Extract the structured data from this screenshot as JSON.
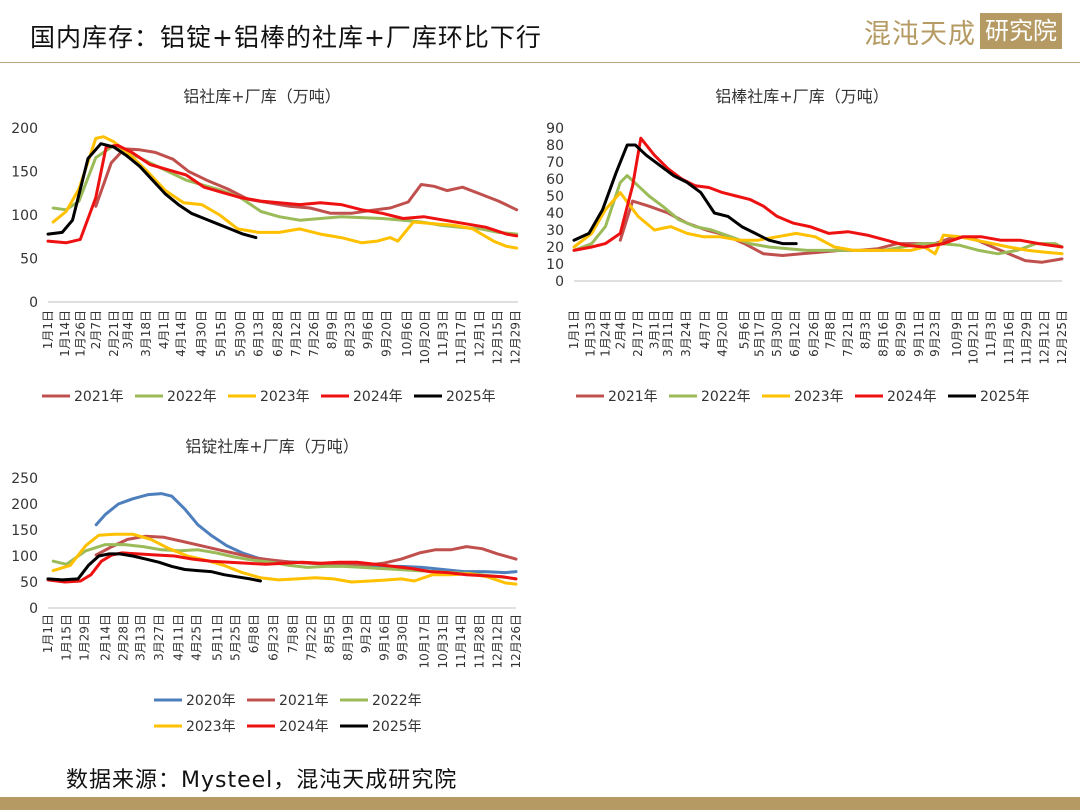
{
  "header": {
    "title": "国内库存：铝锭+铝棒的社库+厂库环比下行",
    "brand_main": "混沌天成",
    "brand_box": "研究院"
  },
  "footer": {
    "source": "数据来源：Mysteel，混沌天成研究院"
  },
  "colors": {
    "2020年": "#4e7fbd",
    "2021年": "#c0504d",
    "2022年": "#9bbb59",
    "2023年": "#ffc000",
    "2024年": "#ee1111",
    "2025年": "#000000"
  },
  "chart_data": [
    {
      "id": "chart1",
      "type": "line",
      "title": "铝社库+厂库（万吨）",
      "ylim": [
        0,
        200
      ],
      "yticks": [
        0,
        50,
        100,
        150,
        200
      ],
      "xlim": [
        1,
        365
      ],
      "xticks": [
        "1月1日",
        "1月14日",
        "1月26日",
        "2月7日",
        "2月21日",
        "3月4日",
        "3月18日",
        "4月1日",
        "4月14日",
        "4月30日",
        "5月15日",
        "5月30日",
        "6月13日",
        "6月28日",
        "7月12日",
        "7月26日",
        "8月9日",
        "8月23日",
        "9月6日",
        "9月20日",
        "10月6日",
        "10月20日",
        "11月3日",
        "11月17日",
        "12月1日",
        "12月15日",
        "12月29日"
      ],
      "xtick_days": [
        1,
        14,
        26,
        38,
        52,
        63,
        77,
        91,
        104,
        120,
        135,
        150,
        164,
        179,
        193,
        207,
        221,
        235,
        249,
        263,
        279,
        293,
        307,
        321,
        335,
        349,
        363
      ],
      "legend": [
        "2021年",
        "2022年",
        "2023年",
        "2024年",
        "2025年"
      ],
      "legend_placement": "bottom",
      "series": [
        {
          "name": "2021年",
          "x": [
            38,
            50,
            60,
            72,
            84,
            98,
            110,
            124,
            140,
            156,
            172,
            188,
            204,
            220,
            236,
            250,
            266,
            280,
            290,
            300,
            310,
            322,
            336,
            350,
            364
          ],
          "y": [
            110,
            160,
            176,
            175,
            172,
            164,
            150,
            140,
            130,
            118,
            114,
            110,
            108,
            102,
            102,
            105,
            108,
            115,
            135,
            133,
            128,
            132,
            124,
            116,
            106
          ]
        },
        {
          "name": "2022年",
          "x": [
            5,
            15,
            25,
            38,
            52,
            66,
            80,
            94,
            108,
            122,
            136,
            150,
            166,
            180,
            196,
            212,
            228,
            244,
            260,
            276,
            290,
            306,
            320,
            336,
            350,
            364
          ],
          "y": [
            108,
            106,
            116,
            166,
            180,
            170,
            160,
            150,
            140,
            134,
            128,
            120,
            104,
            98,
            94,
            96,
            98,
            97,
            96,
            94,
            92,
            88,
            86,
            84,
            80,
            78
          ]
        },
        {
          "name": "2023年",
          "x": [
            5,
            15,
            25,
            38,
            44,
            52,
            64,
            78,
            92,
            106,
            120,
            134,
            148,
            164,
            180,
            196,
            212,
            228,
            244,
            256,
            266,
            272,
            284,
            300,
            316,
            330,
            346,
            356,
            364
          ],
          "y": [
            92,
            104,
            130,
            188,
            190,
            184,
            170,
            150,
            128,
            114,
            112,
            100,
            84,
            80,
            80,
            84,
            78,
            74,
            68,
            70,
            74,
            70,
            92,
            90,
            88,
            84,
            70,
            64,
            62
          ]
        },
        {
          "name": "2024年",
          "x": [
            1,
            15,
            26,
            38,
            46,
            55,
            66,
            80,
            94,
            108,
            122,
            136,
            150,
            166,
            180,
            196,
            212,
            228,
            244,
            260,
            276,
            292,
            308,
            324,
            340,
            356,
            364
          ],
          "y": [
            70,
            68,
            72,
            120,
            178,
            180,
            172,
            158,
            152,
            146,
            132,
            126,
            120,
            116,
            114,
            112,
            114,
            112,
            106,
            102,
            96,
            98,
            94,
            90,
            86,
            78,
            76
          ]
        },
        {
          "name": "2025年",
          "x": [
            1,
            12,
            20,
            32,
            42,
            52,
            62,
            72,
            82,
            92,
            102,
            112,
            122,
            132,
            142,
            152,
            162
          ],
          "y": [
            78,
            80,
            94,
            165,
            182,
            178,
            168,
            156,
            140,
            124,
            112,
            102,
            96,
            90,
            84,
            78,
            74
          ]
        }
      ]
    },
    {
      "id": "chart2",
      "type": "line",
      "title": "铝棒社库+厂库（万吨）",
      "ylim": [
        0,
        90
      ],
      "yticks": [
        0,
        10,
        20,
        30,
        40,
        50,
        60,
        70,
        80,
        90
      ],
      "xlim": [
        1,
        359
      ],
      "xticks": [
        "1月1日",
        "1月13日",
        "1月24日",
        "2月4日",
        "2月17日",
        "3月1日",
        "3月11日",
        "3月24日",
        "4月7日",
        "4月20日",
        "5月6日",
        "5月17日",
        "5月30日",
        "6月12日",
        "6月26日",
        "7月8日",
        "7月21日",
        "8月3日",
        "8月16日",
        "8月29日",
        "9月11日",
        "9月23日",
        "10月9日",
        "10月21日",
        "11月3日",
        "11月16日",
        "11月29日",
        "12月12日",
        "12月25日"
      ],
      "xtick_days": [
        1,
        13,
        24,
        35,
        48,
        60,
        70,
        83,
        97,
        110,
        126,
        137,
        150,
        163,
        177,
        189,
        202,
        215,
        228,
        241,
        254,
        266,
        282,
        294,
        307,
        320,
        333,
        346,
        359
      ],
      "legend": [
        "2021年",
        "2022年",
        "2023年",
        "2024年",
        "2025年"
      ],
      "legend_placement": "bottom",
      "series": [
        {
          "name": "2021年",
          "x": [
            35,
            44,
            56,
            70,
            84,
            98,
            112,
            126,
            140,
            154,
            168,
            182,
            196,
            210,
            224,
            238,
            252,
            266,
            280,
            294,
            308,
            320,
            332,
            344,
            359
          ],
          "y": [
            24,
            47,
            44,
            40,
            34,
            30,
            27,
            22,
            16,
            15,
            16,
            17,
            18,
            18,
            19,
            22,
            22,
            22,
            26,
            25,
            20,
            16,
            12,
            11,
            13
          ]
        },
        {
          "name": "2022年",
          "x": [
            1,
            14,
            24,
            35,
            40,
            48,
            56,
            66,
            78,
            90,
            102,
            116,
            130,
            144,
            158,
            172,
            186,
            200,
            214,
            228,
            242,
            256,
            270,
            284,
            298,
            312,
            326,
            340,
            354,
            359
          ],
          "y": [
            18,
            22,
            32,
            58,
            62,
            56,
            50,
            44,
            36,
            32,
            30,
            26,
            22,
            20,
            19,
            18,
            18,
            18,
            18,
            18,
            20,
            22,
            22,
            21,
            18,
            16,
            18,
            22,
            22,
            20
          ]
        },
        {
          "name": "2023年",
          "x": [
            1,
            14,
            24,
            35,
            48,
            60,
            72,
            84,
            96,
            108,
            122,
            136,
            150,
            164,
            178,
            192,
            206,
            220,
            234,
            248,
            258,
            266,
            272,
            284,
            296,
            308,
            320,
            334,
            346,
            359
          ],
          "y": [
            20,
            28,
            42,
            52,
            38,
            30,
            32,
            28,
            26,
            26,
            24,
            24,
            26,
            28,
            26,
            20,
            18,
            18,
            18,
            18,
            20,
            16,
            27,
            26,
            24,
            22,
            20,
            18,
            17,
            16
          ]
        },
        {
          "name": "2024年",
          "x": [
            1,
            14,
            24,
            35,
            44,
            50,
            60,
            70,
            80,
            90,
            100,
            110,
            120,
            130,
            140,
            150,
            162,
            174,
            188,
            202,
            216,
            230,
            244,
            258,
            272,
            286,
            300,
            314,
            328,
            342,
            359
          ],
          "y": [
            18,
            20,
            22,
            28,
            56,
            84,
            74,
            66,
            60,
            56,
            55,
            52,
            50,
            48,
            44,
            38,
            34,
            32,
            28,
            29,
            27,
            24,
            21,
            20,
            22,
            26,
            26,
            24,
            24,
            22,
            20
          ]
        },
        {
          "name": "2025年",
          "x": [
            1,
            12,
            22,
            32,
            40,
            46,
            54,
            64,
            74,
            84,
            94,
            104,
            114,
            124,
            134,
            144,
            154,
            164
          ],
          "y": [
            24,
            28,
            42,
            64,
            80,
            80,
            74,
            68,
            62,
            58,
            52,
            40,
            38,
            32,
            28,
            24,
            22,
            22
          ]
        }
      ]
    },
    {
      "id": "chart3",
      "type": "line",
      "title": "铝锭社库+厂库（万吨）",
      "ylim": [
        0,
        250
      ],
      "yticks": [
        0,
        50,
        100,
        150,
        200,
        250
      ],
      "xlim": [
        1,
        360
      ],
      "xticks": [
        "1月1日",
        "1月15日",
        "1月29日",
        "2月14日",
        "2月28日",
        "3月13日",
        "3月27日",
        "4月11日",
        "4月25日",
        "5月11日",
        "5月25日",
        "6月8日",
        "6月23日",
        "7月8日",
        "7月22日",
        "8月5日",
        "8月19日",
        "9月2日",
        "9月16日",
        "9月30日",
        "10月17日",
        "10月31日",
        "11月14日",
        "11月28日",
        "12月12日",
        "12月26日"
      ],
      "xtick_days": [
        1,
        15,
        29,
        45,
        59,
        72,
        86,
        101,
        115,
        131,
        145,
        159,
        174,
        189,
        203,
        217,
        231,
        245,
        259,
        273,
        290,
        304,
        318,
        332,
        346,
        360
      ],
      "legend": [
        "2020年",
        "2021年",
        "2022年",
        "2023年",
        "2024年",
        "2025年"
      ],
      "legend_placement": "bottom",
      "series": [
        {
          "name": "2020年",
          "x": [
            38,
            45,
            55,
            66,
            78,
            88,
            96,
            106,
            116,
            126,
            138,
            150,
            162,
            176,
            192,
            208,
            224,
            240,
            256,
            272,
            288,
            304,
            320,
            336,
            352,
            360
          ],
          "y": [
            160,
            180,
            200,
            210,
            218,
            220,
            215,
            190,
            160,
            140,
            120,
            106,
            96,
            90,
            88,
            86,
            84,
            82,
            80,
            80,
            78,
            74,
            70,
            70,
            68,
            70
          ]
        },
        {
          "name": "2021年",
          "x": [
            38,
            50,
            62,
            76,
            90,
            104,
            118,
            132,
            146,
            160,
            174,
            188,
            202,
            216,
            230,
            244,
            258,
            272,
            286,
            298,
            310,
            322,
            334,
            346,
            360
          ],
          "y": [
            102,
            118,
            132,
            138,
            136,
            128,
            120,
            112,
            104,
            96,
            92,
            88,
            86,
            84,
            84,
            82,
            86,
            94,
            106,
            112,
            112,
            118,
            114,
            104,
            94
          ]
        },
        {
          "name": "2022年",
          "x": [
            5,
            15,
            30,
            45,
            60,
            74,
            88,
            102,
            116,
            130,
            144,
            158,
            172,
            186,
            200,
            214,
            228,
            242,
            256,
            270,
            284,
            298,
            312,
            326,
            340,
            354,
            360
          ],
          "y": [
            90,
            84,
            110,
            122,
            122,
            118,
            112,
            110,
            112,
            106,
            98,
            92,
            88,
            82,
            78,
            80,
            80,
            78,
            76,
            74,
            72,
            70,
            68,
            66,
            62,
            58,
            56
          ]
        },
        {
          "name": "2023年",
          "x": [
            5,
            18,
            30,
            40,
            52,
            66,
            80,
            94,
            108,
            122,
            136,
            150,
            164,
            178,
            192,
            206,
            220,
            234,
            248,
            262,
            272,
            282,
            296,
            310,
            324,
            338,
            352,
            360
          ],
          "y": [
            72,
            82,
            120,
            140,
            142,
            142,
            132,
            114,
            100,
            92,
            82,
            68,
            58,
            54,
            56,
            58,
            56,
            50,
            52,
            54,
            56,
            52,
            64,
            64,
            66,
            60,
            48,
            46
          ]
        },
        {
          "name": "2024年",
          "x": [
            1,
            14,
            26,
            34,
            42,
            50,
            58,
            70,
            84,
            98,
            112,
            126,
            140,
            154,
            168,
            182,
            196,
            210,
            224,
            238,
            252,
            266,
            280,
            294,
            308,
            322,
            336,
            350,
            360
          ],
          "y": [
            54,
            50,
            52,
            64,
            90,
            102,
            106,
            104,
            102,
            100,
            94,
            90,
            88,
            86,
            84,
            86,
            88,
            86,
            88,
            88,
            84,
            80,
            76,
            70,
            68,
            64,
            62,
            60,
            56
          ]
        },
        {
          "name": "2025年",
          "x": [
            1,
            12,
            24,
            32,
            40,
            48,
            56,
            66,
            76,
            86,
            96,
            106,
            116,
            126,
            136,
            146,
            156,
            164
          ],
          "y": [
            56,
            54,
            56,
            82,
            100,
            104,
            104,
            100,
            94,
            88,
            80,
            74,
            72,
            70,
            64,
            60,
            56,
            52
          ]
        }
      ]
    }
  ]
}
